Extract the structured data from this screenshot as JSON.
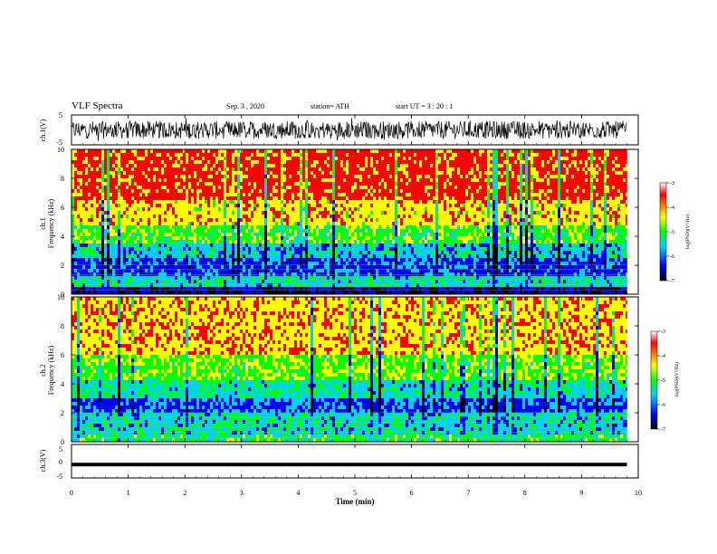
{
  "header": {
    "title": "VLF Spectra",
    "date": "Sep. 3  , 2020",
    "station": "station= ATH",
    "start": "start  UT  =   3  : 20 : 1"
  },
  "colors": {
    "spectrogram_scale": [
      "#000000",
      "#0000ff",
      "#00d0ff",
      "#00ff00",
      "#ffff00",
      "#ff0000",
      "#ffffff"
    ]
  },
  "chart_data": [
    {
      "type": "line",
      "name": "ch1-waveform",
      "ylabel": "ch.1(V)",
      "ylim": [
        -5,
        5
      ],
      "yticks": [
        "5",
        "-5"
      ],
      "xlim": [
        0,
        10
      ],
      "note": "noisy waveform spanning roughly -3 to +3 V until ~9.8 min"
    },
    {
      "type": "heatmap",
      "name": "ch1-spectrogram",
      "ylabel": "ch.1\nFrequency (kHz)",
      "ylim": [
        0,
        10
      ],
      "yticks": [
        "0",
        "2",
        "4",
        "6",
        "8",
        "10"
      ],
      "xlim": [
        0,
        10
      ],
      "data_end_min": 9.8,
      "bands": [
        {
          "from_khz": 0,
          "to_khz": 0.4,
          "level": -6.5
        },
        {
          "from_khz": 0.4,
          "to_khz": 1.2,
          "level": -5.3
        },
        {
          "from_khz": 1.2,
          "to_khz": 2.4,
          "level": -6.0
        },
        {
          "from_khz": 2.4,
          "to_khz": 3.6,
          "level": -5.5
        },
        {
          "from_khz": 3.6,
          "to_khz": 4.8,
          "level": -4.8
        },
        {
          "from_khz": 4.8,
          "to_khz": 6.6,
          "level": -4.1
        },
        {
          "from_khz": 6.6,
          "to_khz": 10,
          "level": -3.5
        }
      ],
      "colorbar": {
        "label": "log(PSD)(V²/Hz)",
        "range": [
          -7,
          -3
        ],
        "ticks": [
          "-3",
          "-4",
          "-5",
          "-6",
          "-7"
        ]
      }
    },
    {
      "type": "heatmap",
      "name": "ch2-spectrogram",
      "ylabel": "ch.2\nFrequency (kHz)",
      "ylim": [
        0,
        10
      ],
      "yticks": [
        "0",
        "2",
        "4",
        "6",
        "8",
        "10"
      ],
      "xlim": [
        0,
        10
      ],
      "data_end_min": 9.8,
      "bands": [
        {
          "from_khz": 0,
          "to_khz": 0.6,
          "level": -5.0
        },
        {
          "from_khz": 0.6,
          "to_khz": 2.0,
          "level": -5.4
        },
        {
          "from_khz": 2.0,
          "to_khz": 3.0,
          "level": -5.9
        },
        {
          "from_khz": 3.0,
          "to_khz": 4.2,
          "level": -5.3
        },
        {
          "from_khz": 4.2,
          "to_khz": 6.0,
          "level": -4.7
        },
        {
          "from_khz": 6.0,
          "to_khz": 10,
          "level": -4.0
        }
      ],
      "colorbar": {
        "label": "log(PSD)(V²/Hz)",
        "range": [
          -7,
          -3
        ],
        "ticks": [
          "-3",
          "-4",
          "-5",
          "-6",
          "-7"
        ]
      }
    },
    {
      "type": "line",
      "name": "ch3-waveform",
      "ylabel": "ch.3(V)",
      "ylim": [
        -5,
        5
      ],
      "yticks": [
        "5",
        "0",
        "-5"
      ],
      "xlim": [
        0,
        10
      ],
      "note": "thick flat trace near -1 V until ~9.8 min"
    }
  ],
  "xaxis": {
    "label": "Time (min)",
    "ticks": [
      "0",
      "1",
      "2",
      "3",
      "4",
      "5",
      "6",
      "7",
      "8",
      "9",
      "10"
    ]
  }
}
